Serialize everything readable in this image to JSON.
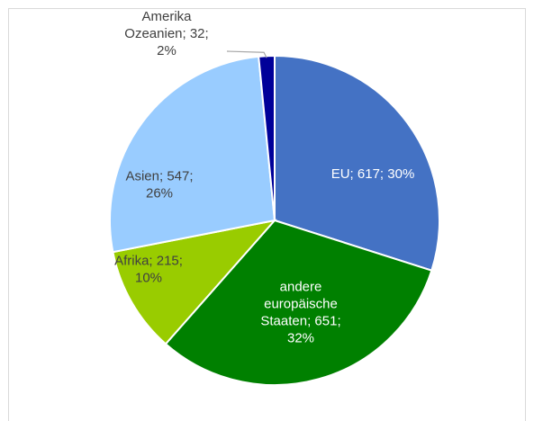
{
  "chart_data": {
    "type": "pie",
    "title": "",
    "legend": "none",
    "slices": [
      {
        "category": "EU",
        "value": 617,
        "percent": "30%",
        "color": "#4472c4",
        "label_color": "#ffffff",
        "label_lines": [
          "EU; 617; 30%"
        ]
      },
      {
        "category": "andere europäische Staaten",
        "value": 651,
        "percent": "32%",
        "color": "#008000",
        "label_color": "#ffffff",
        "label_lines": [
          "andere",
          "europäische",
          "Staaten; 651;",
          "32%"
        ]
      },
      {
        "category": "Afrika",
        "value": 215,
        "percent": "10%",
        "color": "#99cc00",
        "label_color": "#404040",
        "label_lines": [
          "Afrika; 215;",
          "10%"
        ]
      },
      {
        "category": "Asien",
        "value": 547,
        "percent": "26%",
        "color": "#99ccff",
        "label_color": "#404040",
        "label_lines": [
          "Asien; 547;",
          "26%"
        ]
      },
      {
        "category": "Amerika Ozeanien",
        "value": 32,
        "percent": "2%",
        "color": "#000099",
        "label_color": "#404040",
        "label_lines": [
          "Amerika",
          "Ozeanien; 32;",
          "2%"
        ]
      }
    ]
  }
}
